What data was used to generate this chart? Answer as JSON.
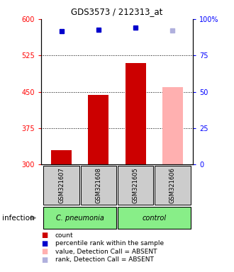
{
  "title": "GDS3573 / 212313_at",
  "samples": [
    "GSM321607",
    "GSM321608",
    "GSM321605",
    "GSM321606"
  ],
  "bar_values": [
    330,
    443,
    510,
    460
  ],
  "bar_colors": [
    "#cc0000",
    "#cc0000",
    "#cc0000",
    "#ffb0b0"
  ],
  "dot_values": [
    575,
    578,
    582,
    576
  ],
  "dot_colors": [
    "#0000cc",
    "#0000cc",
    "#0000cc",
    "#b0b0dd"
  ],
  "ylim_left": [
    300,
    600
  ],
  "ylim_right": [
    0,
    100
  ],
  "yticks_left": [
    300,
    375,
    450,
    525,
    600
  ],
  "yticks_right": [
    0,
    25,
    50,
    75,
    100
  ],
  "ytick_labels_right": [
    "0",
    "25",
    "50",
    "75",
    "100%"
  ],
  "hlines": [
    375,
    450,
    525
  ],
  "legend_items": [
    {
      "color": "#cc0000",
      "label": "count"
    },
    {
      "color": "#0000cc",
      "label": "percentile rank within the sample"
    },
    {
      "color": "#ffb0b0",
      "label": "value, Detection Call = ABSENT"
    },
    {
      "color": "#b0b0dd",
      "label": "rank, Detection Call = ABSENT"
    }
  ],
  "infection_label": "infection",
  "cpneumonia_color": "#88ee88",
  "control_color": "#88ee88",
  "sample_bg": "#cccccc"
}
